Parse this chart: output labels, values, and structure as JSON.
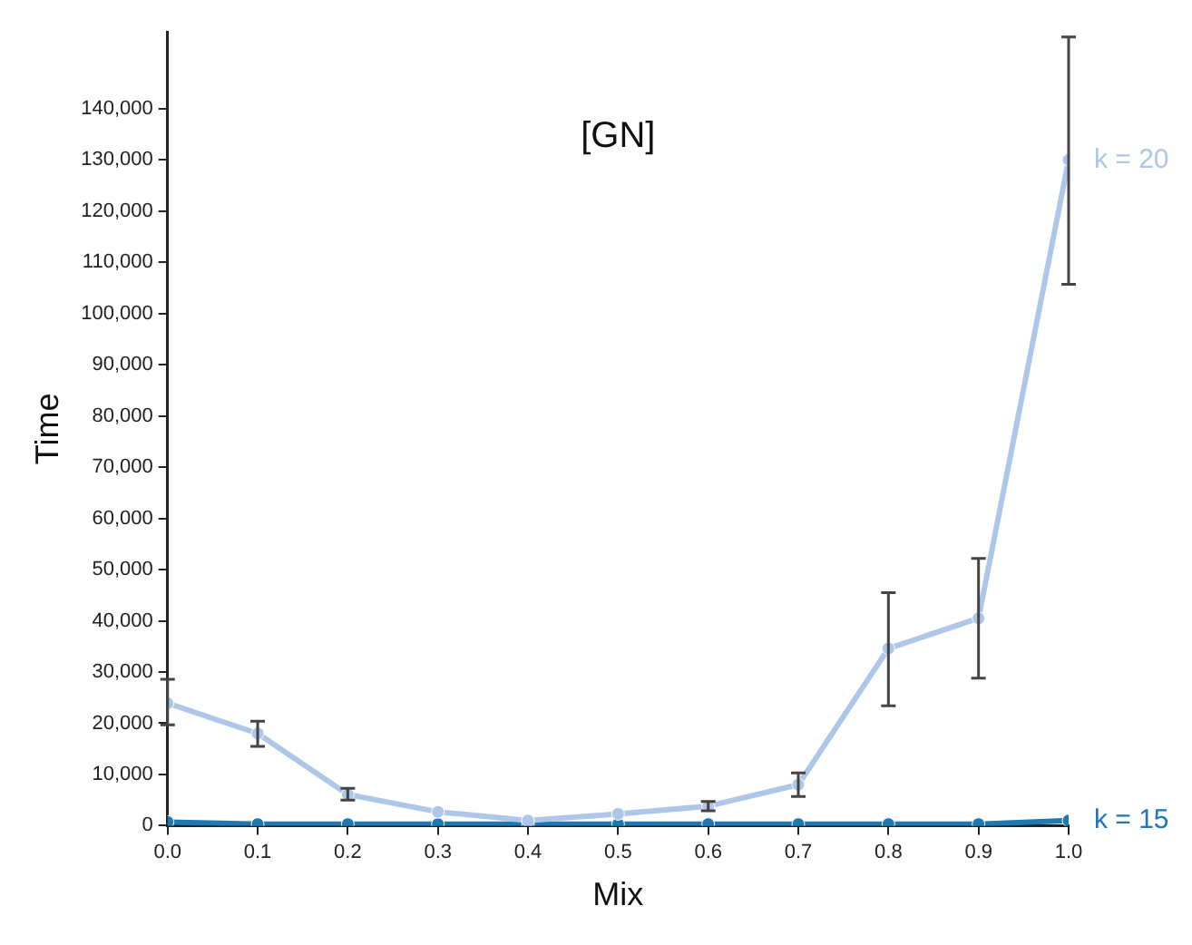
{
  "chart_data": {
    "type": "line",
    "title": "[GN]",
    "xlabel": "Mix",
    "ylabel": "Time",
    "x": [
      0,
      0.1,
      0.2,
      0.3,
      0.4,
      0.5,
      0.6,
      0.7,
      0.8,
      0.9,
      1
    ],
    "series": [
      {
        "name": "k = 20",
        "color": "#aec7e8",
        "values": [
          23900,
          18000,
          6100,
          2700,
          1000,
          2300,
          3800,
          8000,
          34600,
          40500,
          130000
        ],
        "errors": [
          [
            19700,
            28600
          ],
          [
            15500,
            20400
          ],
          [
            5000,
            7300
          ],
          null,
          null,
          null,
          [
            2900,
            4700
          ],
          [
            5700,
            10300
          ],
          [
            23400,
            45500
          ],
          [
            28800,
            52200
          ],
          [
            105700,
            154000
          ]
        ]
      },
      {
        "name": "k = 15",
        "color": "#1f77b4",
        "values": [
          700,
          300,
          300,
          300,
          300,
          300,
          300,
          300,
          300,
          300,
          1000
        ]
      }
    ],
    "xlim": [
      0,
      1
    ],
    "xticks": [
      {
        "value": 0,
        "label": "0.0"
      },
      0.1,
      0.2,
      0.3,
      0.4,
      0.5,
      0.6,
      0.7,
      0.8,
      0.9,
      {
        "value": 1,
        "label": "1.0"
      }
    ],
    "ylim": [
      0,
      155000
    ],
    "yticks": [
      {
        "value": 0,
        "label": "0"
      },
      {
        "value": 10000,
        "label": "10,000"
      },
      {
        "value": 20000,
        "label": "20,000"
      },
      {
        "value": 30000,
        "label": "30,000"
      },
      {
        "value": 40000,
        "label": "40,000"
      },
      {
        "value": 50000,
        "label": "50,000"
      },
      {
        "value": 60000,
        "label": "60,000"
      },
      {
        "value": 70000,
        "label": "70,000"
      },
      {
        "value": 80000,
        "label": "80,000"
      },
      {
        "value": 90000,
        "label": "90,000"
      },
      {
        "value": 100000,
        "label": "100,000"
      },
      {
        "value": 110000,
        "label": "110,000"
      },
      {
        "value": 120000,
        "label": "120,000"
      },
      {
        "value": 130000,
        "label": "130,000"
      },
      {
        "value": 140000,
        "label": "140,000"
      }
    ],
    "marker": "circle",
    "legend": false
  }
}
